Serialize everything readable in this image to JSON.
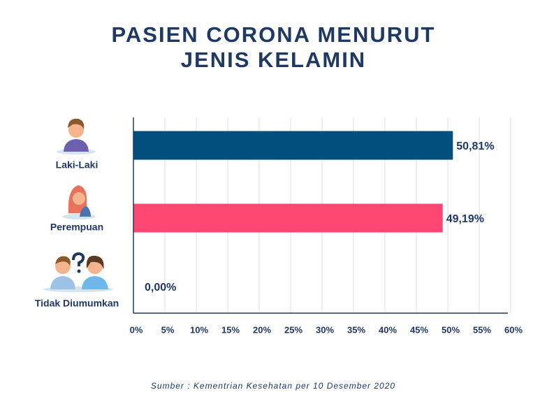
{
  "chart_data": {
    "type": "hbar",
    "title": "PASIEN CORONA MENURUT JENIS KELAMIN",
    "categories": [
      "Laki-Laki",
      "Perempuan",
      "Tidak Diumumkan"
    ],
    "values": [
      50.81,
      49.19,
      0.0
    ],
    "value_labels": [
      "50,81%",
      "49,19%",
      "0,00%"
    ],
    "colors": [
      "#004f7c",
      "#ff4571",
      "#999999"
    ],
    "xlim": [
      0,
      60
    ],
    "xticks": [
      {
        "value": 0,
        "label": "0%"
      },
      {
        "value": 5,
        "label": "5%"
      },
      {
        "value": 10,
        "label": "10%"
      },
      {
        "value": 15,
        "label": "15%"
      },
      {
        "value": 20,
        "label": "20%"
      },
      {
        "value": 25,
        "label": "25%"
      },
      {
        "value": 30,
        "label": "30%"
      },
      {
        "value": 35,
        "label": "35%"
      },
      {
        "value": 40,
        "label": "40%"
      },
      {
        "value": 45,
        "label": "45%"
      },
      {
        "value": 50,
        "label": "50%"
      },
      {
        "value": 55,
        "label": "55%"
      },
      {
        "value": 60,
        "label": "60%"
      }
    ],
    "grid": true,
    "source": "Sumber : Kementrian Kesehatan per 10 Desember 2020"
  }
}
